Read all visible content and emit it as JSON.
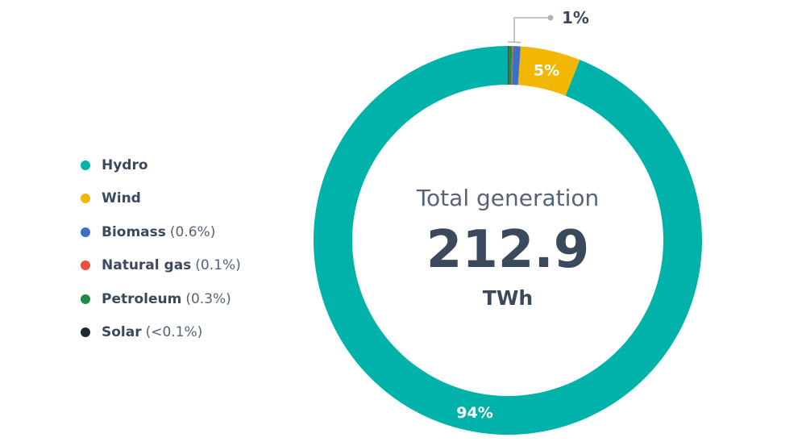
{
  "chart_data": {
    "type": "pie",
    "style": "donut",
    "center": {
      "title": "Total generation",
      "value": "212.9",
      "unit": "TWh"
    },
    "slices": [
      {
        "name": "Hydro",
        "value": 94.0,
        "color": "#00b2a9",
        "label": "94%",
        "note": ""
      },
      {
        "name": "Wind",
        "value": 5.0,
        "color": "#f2b705",
        "label": "5%",
        "note": ""
      },
      {
        "name": "Biomass",
        "value": 0.6,
        "color": "#3d6fc9",
        "label": "",
        "note": "(0.6%)"
      },
      {
        "name": "Natural gas",
        "value": 0.1,
        "color": "#e9513d",
        "label": "",
        "note": "(0.1%)"
      },
      {
        "name": "Petroleum",
        "value": 0.3,
        "color": "#1f8a47",
        "label": "",
        "note": "(0.3%)"
      },
      {
        "name": "Solar",
        "value": 0.05,
        "color": "#1e2a33",
        "label": "",
        "note": "(<0.1%)"
      }
    ],
    "callout": {
      "label": "1%",
      "group": [
        "Biomass",
        "Natural gas",
        "Petroleum",
        "Solar"
      ],
      "color": "#a9b4be"
    },
    "legend_position": "left"
  }
}
